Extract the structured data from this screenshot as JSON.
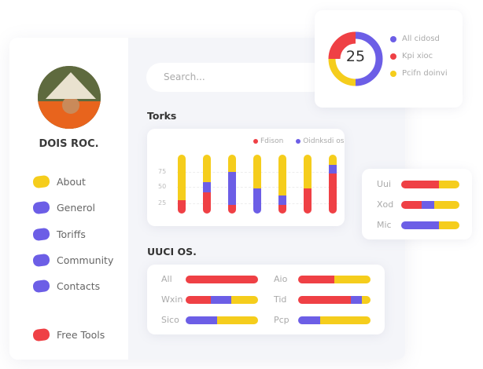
{
  "colors": {
    "red": "#ef4045",
    "purple": "#6c5ee6",
    "yellow": "#f5cd1c"
  },
  "profile": {
    "name": "DOIS ROC."
  },
  "sidebar": {
    "items": [
      {
        "label": "About",
        "color": "#f5cd1c"
      },
      {
        "label": "Generol",
        "color": "#6c5ee6"
      },
      {
        "label": "Toriffs",
        "color": "#6c5ee6"
      },
      {
        "label": "Community",
        "color": "#6c5ee6"
      },
      {
        "label": "Contacts",
        "color": "#6c5ee6"
      },
      {
        "label": "Free Tools",
        "color": "#ef4045"
      }
    ]
  },
  "search": {
    "placeholder": "Search..."
  },
  "donut": {
    "center": "25",
    "legend": [
      "All cidosd",
      "Kpi xioc",
      "Pcifn doinvi"
    ],
    "segments": [
      {
        "color": "#6c5ee6",
        "value": 50
      },
      {
        "color": "#f5cd1c",
        "value": 25
      },
      {
        "color": "#ef4045",
        "value": 25
      }
    ]
  },
  "torks": {
    "title": "Torks",
    "legend": [
      "Fdison",
      "Oidnksdi os"
    ],
    "ticks": [
      "75",
      "50",
      "25"
    ],
    "bars": [
      [
        23,
        0,
        77
      ],
      [
        36,
        18,
        46
      ],
      [
        15,
        56,
        29
      ],
      [
        0,
        43,
        57
      ],
      [
        15,
        16,
        69
      ],
      [
        43,
        0,
        57
      ],
      [
        68,
        15,
        17
      ]
    ]
  },
  "side_bars": [
    {
      "label": "Uui",
      "v": [
        65,
        0,
        35
      ]
    },
    {
      "label": "Xod",
      "v": [
        35,
        22,
        43
      ]
    },
    {
      "label": "Mic",
      "v": [
        0,
        65,
        35
      ]
    }
  ],
  "uuci": {
    "title": "UUCI OS.",
    "rows": [
      {
        "label": "All",
        "v": [
          100,
          0,
          0
        ]
      },
      {
        "label": "Aio",
        "v": [
          50,
          0,
          50
        ]
      },
      {
        "label": "Wxin",
        "v": [
          35,
          28,
          37
        ]
      },
      {
        "label": "Tid",
        "v": [
          73,
          15,
          12
        ]
      },
      {
        "label": "Sico",
        "v": [
          0,
          43,
          57
        ]
      },
      {
        "label": "Pcp",
        "v": [
          0,
          30,
          70
        ]
      }
    ]
  }
}
